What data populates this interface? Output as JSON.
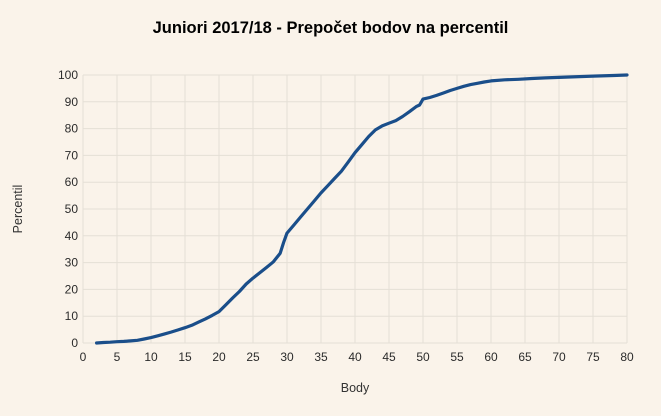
{
  "page": {
    "background": "#faf3ea"
  },
  "chart_data": {
    "type": "line",
    "title": "Juniori 2017/18 - Prepočet bodov na percentil",
    "xlabel": "Body",
    "ylabel": "Percentil",
    "xlim": [
      0,
      80
    ],
    "ylim": [
      0,
      100
    ],
    "x_ticks": [
      0,
      5,
      10,
      15,
      20,
      25,
      30,
      35,
      40,
      45,
      50,
      55,
      60,
      65,
      70,
      75,
      80
    ],
    "y_ticks": [
      0,
      10,
      20,
      30,
      40,
      50,
      60,
      70,
      80,
      90,
      100
    ],
    "grid": true,
    "legend_position": "none",
    "colors": {
      "line": "#1a4e8a",
      "grid": "#e4dfd6",
      "text": "#333333",
      "title": "#000000",
      "background": "#faf3ea"
    },
    "series": [
      {
        "name": "Percentil",
        "points": [
          [
            2,
            0
          ],
          [
            3,
            0.2
          ],
          [
            4,
            0.3
          ],
          [
            5,
            0.5
          ],
          [
            6,
            0.6
          ],
          [
            7,
            0.8
          ],
          [
            8,
            1
          ],
          [
            9,
            1.5
          ],
          [
            10,
            2
          ],
          [
            11,
            2.7
          ],
          [
            12,
            3.4
          ],
          [
            13,
            4.1
          ],
          [
            14,
            4.9
          ],
          [
            15,
            5.7
          ],
          [
            16,
            6.6
          ],
          [
            17,
            7.8
          ],
          [
            18,
            9
          ],
          [
            19,
            10.3
          ],
          [
            20,
            11.7
          ],
          [
            21,
            14.2
          ],
          [
            22,
            16.8
          ],
          [
            23,
            19.2
          ],
          [
            24,
            22
          ],
          [
            25,
            24.2
          ],
          [
            26,
            26.2
          ],
          [
            27,
            28.2
          ],
          [
            28,
            30.3
          ],
          [
            29,
            33.5
          ],
          [
            29.5,
            37.5
          ],
          [
            30,
            41
          ],
          [
            31,
            44
          ],
          [
            32,
            47
          ],
          [
            33,
            50
          ],
          [
            34,
            53
          ],
          [
            35,
            56
          ],
          [
            36,
            58.7
          ],
          [
            37,
            61.4
          ],
          [
            38,
            64.1
          ],
          [
            39,
            67.5
          ],
          [
            40,
            71
          ],
          [
            41,
            74
          ],
          [
            42,
            77
          ],
          [
            43,
            79.5
          ],
          [
            44,
            81
          ],
          [
            45,
            82
          ],
          [
            46,
            83
          ],
          [
            47,
            84.5
          ],
          [
            48,
            86.3
          ],
          [
            49,
            88.2
          ],
          [
            49.5,
            88.8
          ],
          [
            50,
            91
          ],
          [
            51,
            91.6
          ],
          [
            52,
            92.4
          ],
          [
            53,
            93.3
          ],
          [
            54,
            94.2
          ],
          [
            55,
            95
          ],
          [
            56,
            95.8
          ],
          [
            57,
            96.4
          ],
          [
            58,
            96.9
          ],
          [
            59,
            97.4
          ],
          [
            60,
            97.8
          ],
          [
            62,
            98.2
          ],
          [
            64,
            98.4
          ],
          [
            66,
            98.7
          ],
          [
            68,
            98.9
          ],
          [
            70,
            99.1
          ],
          [
            72,
            99.3
          ],
          [
            75,
            99.6
          ],
          [
            78,
            99.8
          ],
          [
            80,
            100
          ]
        ]
      }
    ]
  }
}
